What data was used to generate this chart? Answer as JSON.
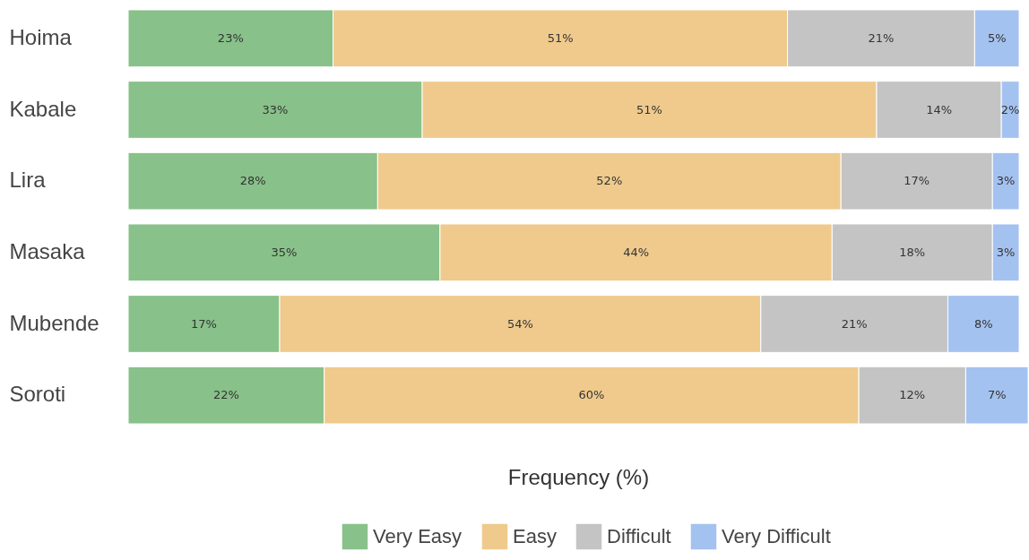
{
  "chart_data": {
    "type": "bar",
    "orientation": "horizontal",
    "stacked": true,
    "xlabel": "Frequency (%)",
    "categories": [
      "Hoima",
      "Kabale",
      "Lira",
      "Masaka",
      "Mubende",
      "Soroti"
    ],
    "series": [
      {
        "name": "Very Easy",
        "color": "#88c189",
        "values": [
          23,
          33,
          28,
          35,
          17,
          22
        ],
        "value_labels": [
          "23%",
          "33%",
          "28%",
          "35%",
          "17%",
          "22%"
        ]
      },
      {
        "name": "Easy",
        "color": "#efca8c",
        "values": [
          51,
          51,
          52,
          44,
          54,
          60
        ],
        "value_labels": [
          "51%",
          "51%",
          "52%",
          "44%",
          "54%",
          "60%"
        ]
      },
      {
        "name": "Difficult",
        "color": "#c4c4c4",
        "values": [
          21,
          14,
          17,
          18,
          21,
          12
        ],
        "value_labels": [
          "21%",
          "14%",
          "17%",
          "18%",
          "21%",
          "12%"
        ]
      },
      {
        "name": "Very Difficult",
        "color": "#a4c2f0",
        "values": [
          5,
          2,
          3,
          3,
          8,
          7
        ],
        "value_labels": [
          "5%",
          "2%",
          "3%",
          "3%",
          "8%",
          "7%"
        ]
      }
    ],
    "xlim": [
      0,
      101
    ],
    "tick_labels": "y",
    "legend": "bottom"
  }
}
